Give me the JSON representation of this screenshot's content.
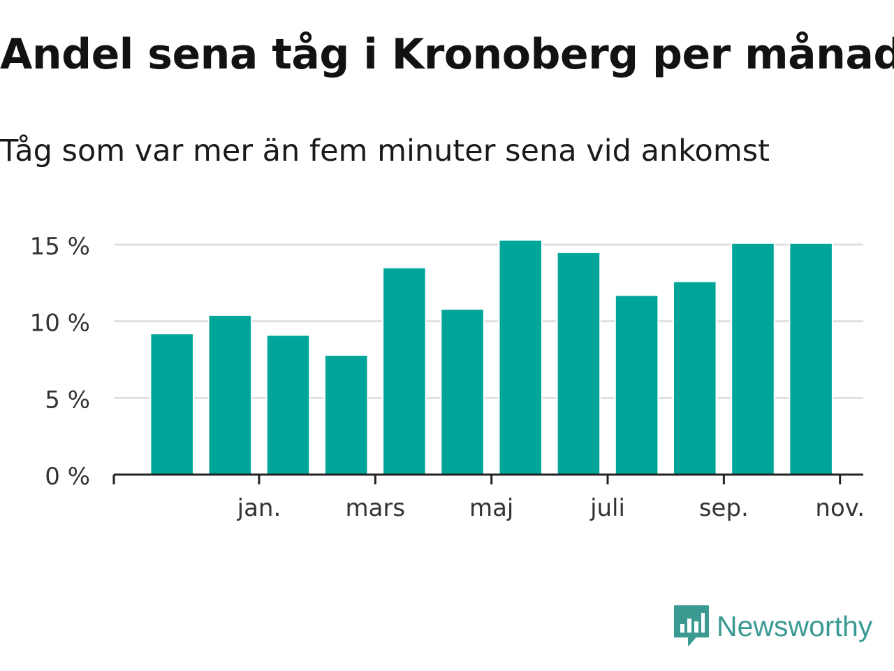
{
  "header": {
    "title": "Andel sena tåg i Kronoberg per månad",
    "subtitle": "Tåg som var mer än fem minuter sena vid ankomst"
  },
  "chart_data": {
    "type": "bar",
    "values": [
      9.2,
      10.4,
      9.1,
      7.8,
      13.5,
      10.8,
      15.3,
      14.5,
      11.7,
      12.6,
      15.1,
      15.1
    ],
    "x_tick_labels": [
      "jan.",
      "mars",
      "maj",
      "juli",
      "sep.",
      "nov."
    ],
    "y_ticks": [
      0,
      5,
      10,
      15
    ],
    "y_tick_labels": [
      "0 %",
      "5 %",
      "10 %",
      "15 %"
    ],
    "ylim": [
      0,
      15.5
    ],
    "grid": true,
    "bar_color": "#00a59a",
    "grid_color": "#e0e0e0",
    "axis_color": "#222222"
  },
  "brand": {
    "name": "Newsworthy",
    "color": "#3a9a92"
  }
}
